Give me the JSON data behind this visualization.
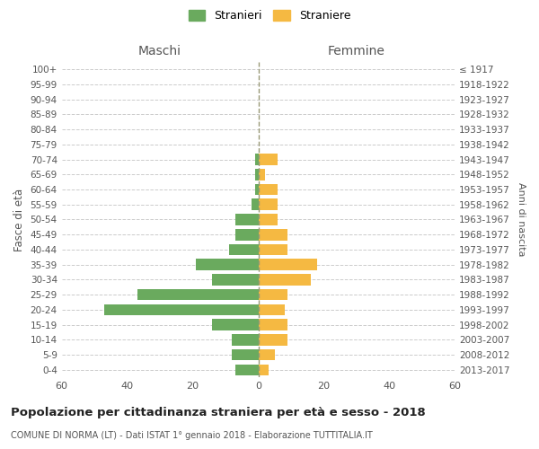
{
  "age_groups": [
    "100+",
    "95-99",
    "90-94",
    "85-89",
    "80-84",
    "75-79",
    "70-74",
    "65-69",
    "60-64",
    "55-59",
    "50-54",
    "45-49",
    "40-44",
    "35-39",
    "30-34",
    "25-29",
    "20-24",
    "15-19",
    "10-14",
    "5-9",
    "0-4"
  ],
  "birth_years": [
    "≤ 1917",
    "1918-1922",
    "1923-1927",
    "1928-1932",
    "1933-1937",
    "1938-1942",
    "1943-1947",
    "1948-1952",
    "1953-1957",
    "1958-1962",
    "1963-1967",
    "1968-1972",
    "1973-1977",
    "1978-1982",
    "1983-1987",
    "1988-1992",
    "1993-1997",
    "1998-2002",
    "2003-2007",
    "2008-2012",
    "2013-2017"
  ],
  "males": [
    0,
    0,
    0,
    0,
    0,
    0,
    1,
    1,
    1,
    2,
    7,
    7,
    9,
    19,
    14,
    37,
    47,
    14,
    8,
    8,
    7
  ],
  "females": [
    0,
    0,
    0,
    0,
    0,
    0,
    6,
    2,
    6,
    6,
    6,
    9,
    9,
    18,
    16,
    9,
    8,
    9,
    9,
    5,
    3
  ],
  "male_color": "#6aaa5e",
  "female_color": "#f5b942",
  "background_color": "#ffffff",
  "grid_color": "#cccccc",
  "title": "Popolazione per cittadinanza straniera per età e sesso - 2018",
  "subtitle": "COMUNE DI NORMA (LT) - Dati ISTAT 1° gennaio 2018 - Elaborazione TUTTITALIA.IT",
  "xlabel_left": "Maschi",
  "xlabel_right": "Femmine",
  "ylabel_left": "Fasce di età",
  "ylabel_right": "Anni di nascita",
  "legend_male": "Stranieri",
  "legend_female": "Straniere",
  "xlim": 60,
  "centerline_color": "#999977"
}
